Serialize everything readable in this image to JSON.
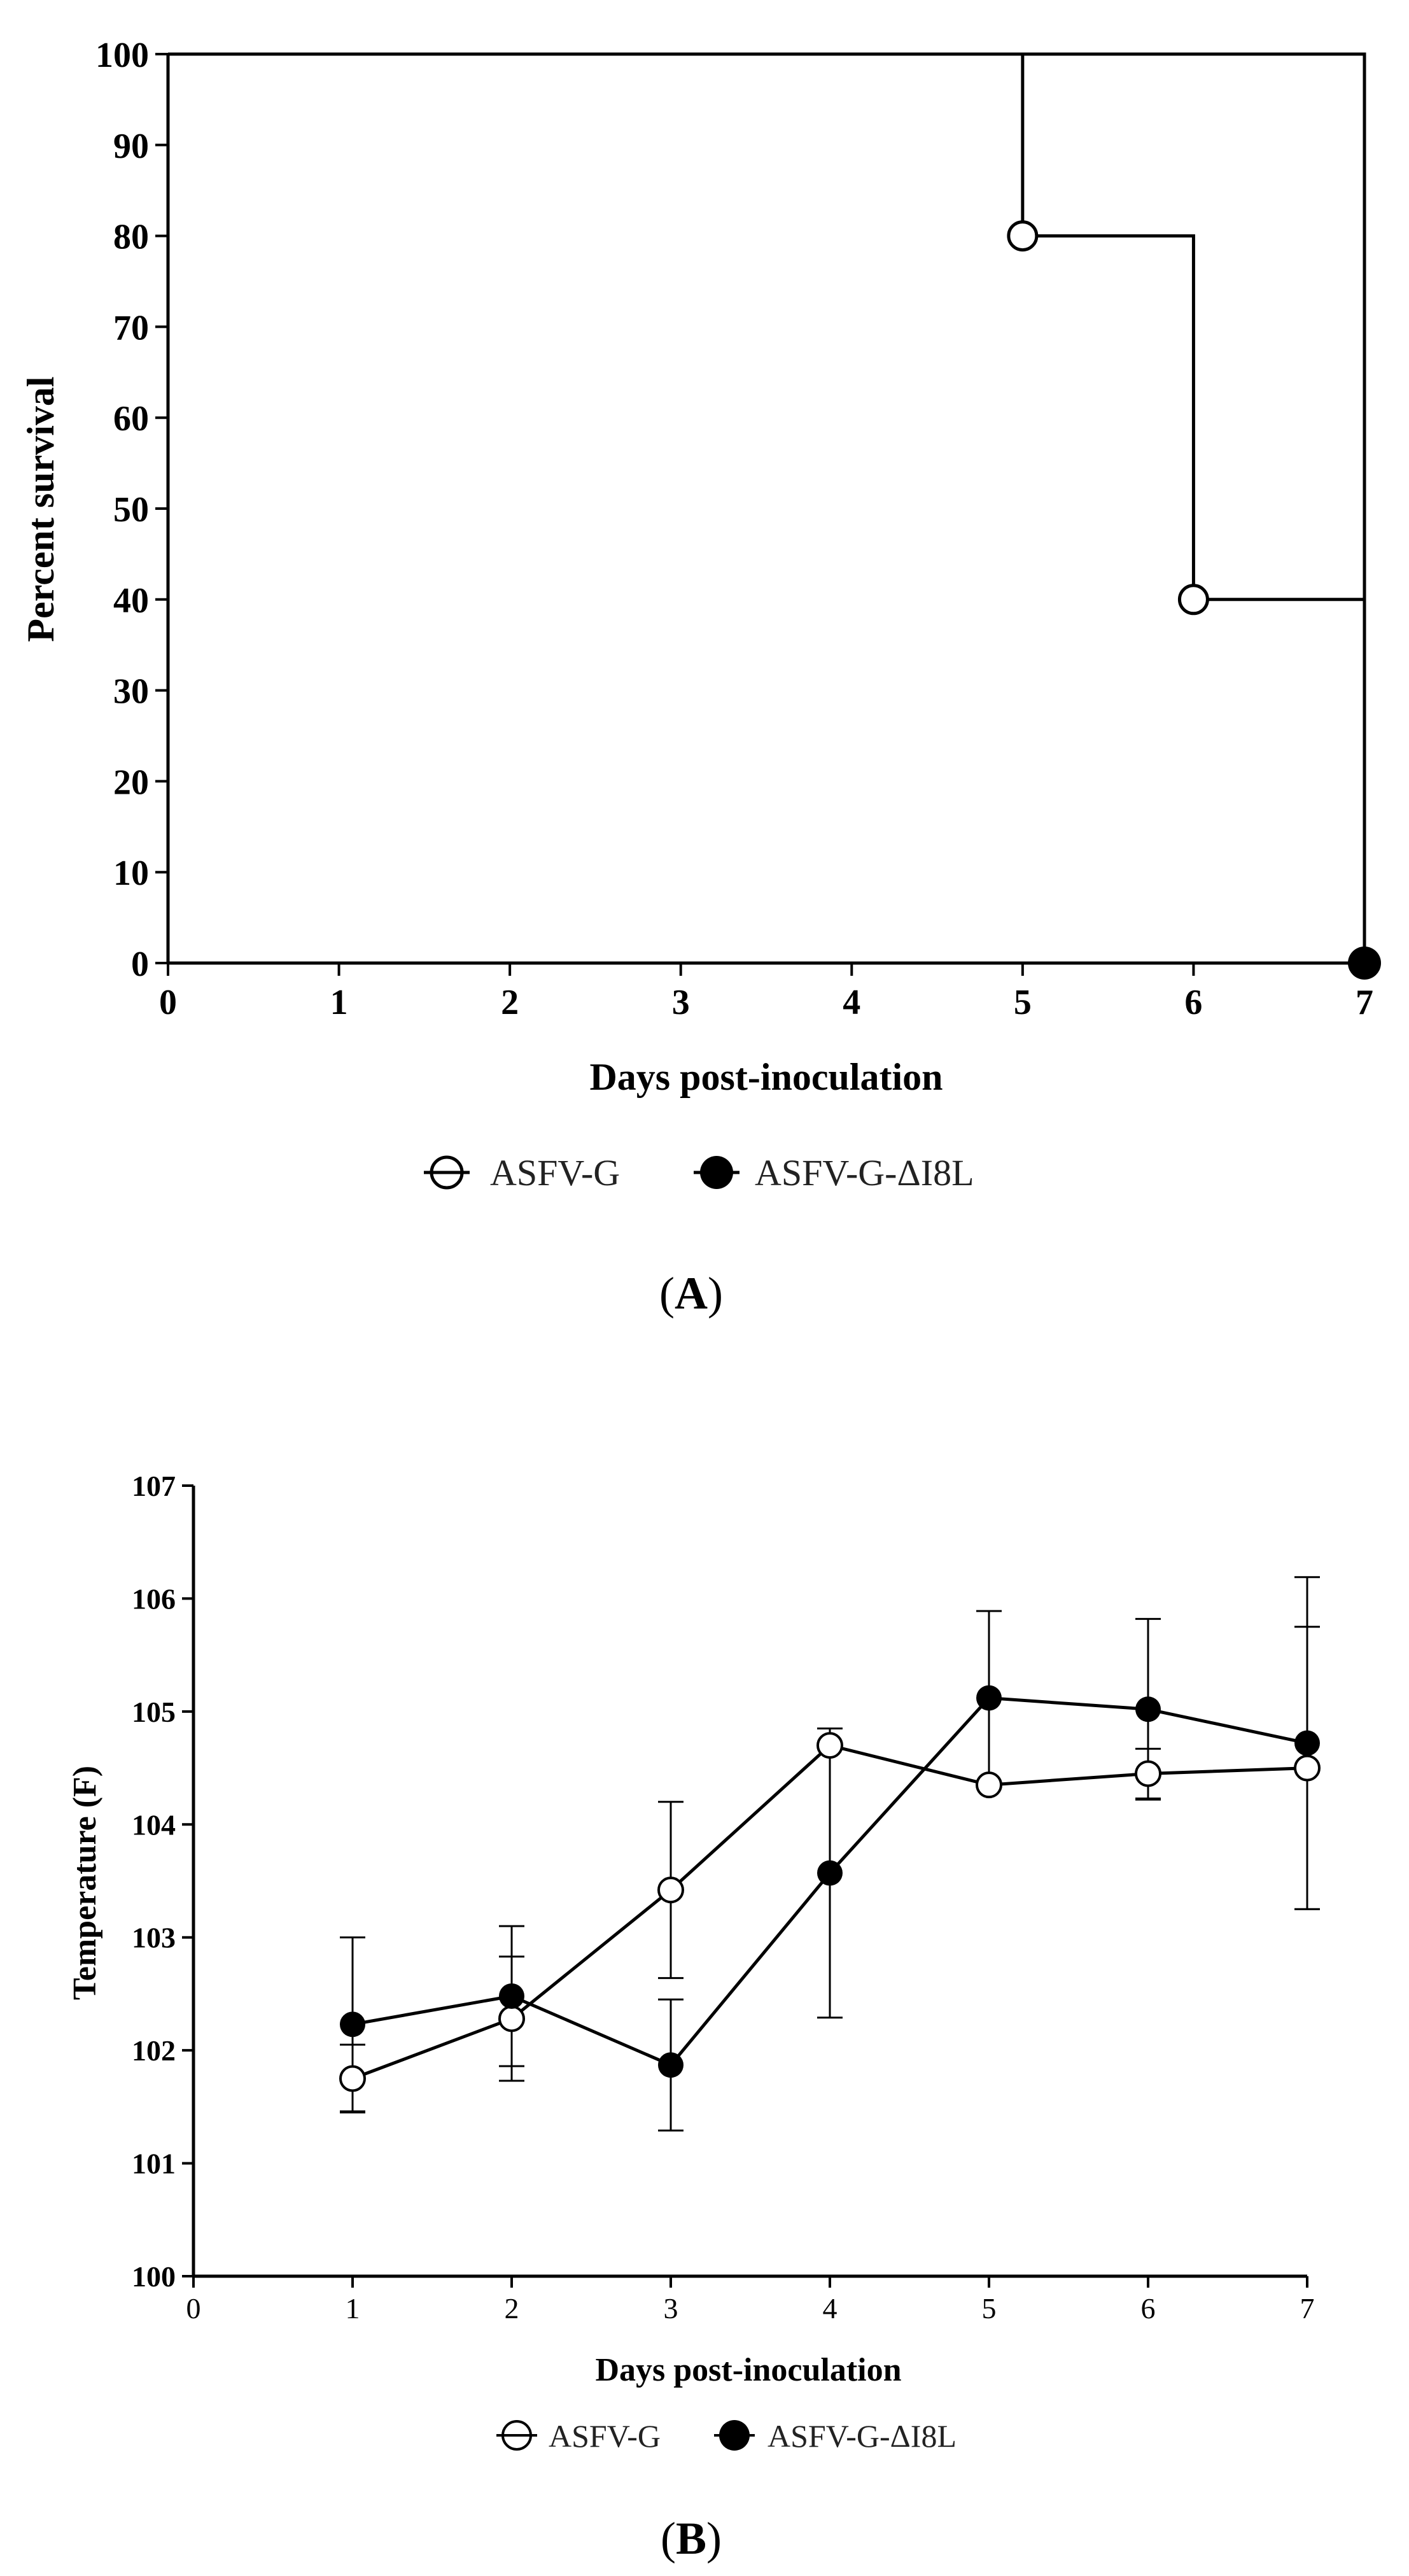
{
  "chart_data": [
    {
      "type": "line",
      "subtype": "step-survival",
      "panel_label": "A",
      "xlabel": "Days post-inoculation",
      "ylabel": "Percent survival",
      "xlim": [
        0,
        7
      ],
      "ylim": [
        0,
        100
      ],
      "x_ticks": [
        "0",
        "1",
        "2",
        "3",
        "4",
        "5",
        "6",
        "7"
      ],
      "y_ticks": [
        "0",
        "10",
        "20",
        "30",
        "40",
        "50",
        "60",
        "70",
        "80",
        "90",
        "100"
      ],
      "legend": [
        "ASFV-G",
        "ASFV-G-ΔI8L"
      ],
      "legend_display": [
        "ASFV-G",
        "ASFV-G-ΔI8L"
      ],
      "series": [
        {
          "name": "ASFV-G",
          "marker": "open-circle",
          "steps": [
            [
              0,
              100
            ],
            [
              5,
              100
            ],
            [
              5,
              80
            ],
            [
              6,
              80
            ],
            [
              6,
              40
            ],
            [
              7,
              40
            ]
          ],
          "markers": [
            [
              5,
              80
            ],
            [
              6,
              40
            ]
          ]
        },
        {
          "name": "ASFV-G-ΔI8L",
          "marker": "filled-circle",
          "steps": [
            [
              0,
              100
            ],
            [
              7,
              100
            ],
            [
              7,
              0
            ]
          ],
          "markers": [
            [
              7,
              0
            ]
          ]
        }
      ]
    },
    {
      "type": "line",
      "panel_label": "B",
      "xlabel": "Days post-inoculation",
      "ylabel": "Temperature (F)",
      "xlim": [
        0,
        7
      ],
      "ylim": [
        100,
        107
      ],
      "x_ticks": [
        "0",
        "1",
        "2",
        "3",
        "4",
        "5",
        "6",
        "7"
      ],
      "y_ticks": [
        "100",
        "101",
        "102",
        "103",
        "104",
        "105",
        "106",
        "107"
      ],
      "legend": [
        "ASFV-G",
        "ASFV-G-ΔI8L"
      ],
      "categories": [
        1,
        2,
        3,
        4,
        5,
        6,
        7
      ],
      "series": [
        {
          "name": "ASFV-G",
          "marker": "open-circle",
          "values": [
            101.75,
            102.28,
            103.42,
            104.7,
            104.35,
            104.45,
            104.5
          ],
          "errors": [
            0.3,
            0.55,
            0.78,
            0.0,
            0.0,
            0.22,
            1.25
          ]
        },
        {
          "name": "ASFV-G-ΔI8L",
          "marker": "filled-circle",
          "values": [
            102.23,
            102.48,
            101.87,
            103.57,
            105.12,
            105.02,
            104.72
          ],
          "errors": [
            0.77,
            0.62,
            0.58,
            1.28,
            0.77,
            0.8,
            1.47
          ]
        }
      ]
    }
  ]
}
